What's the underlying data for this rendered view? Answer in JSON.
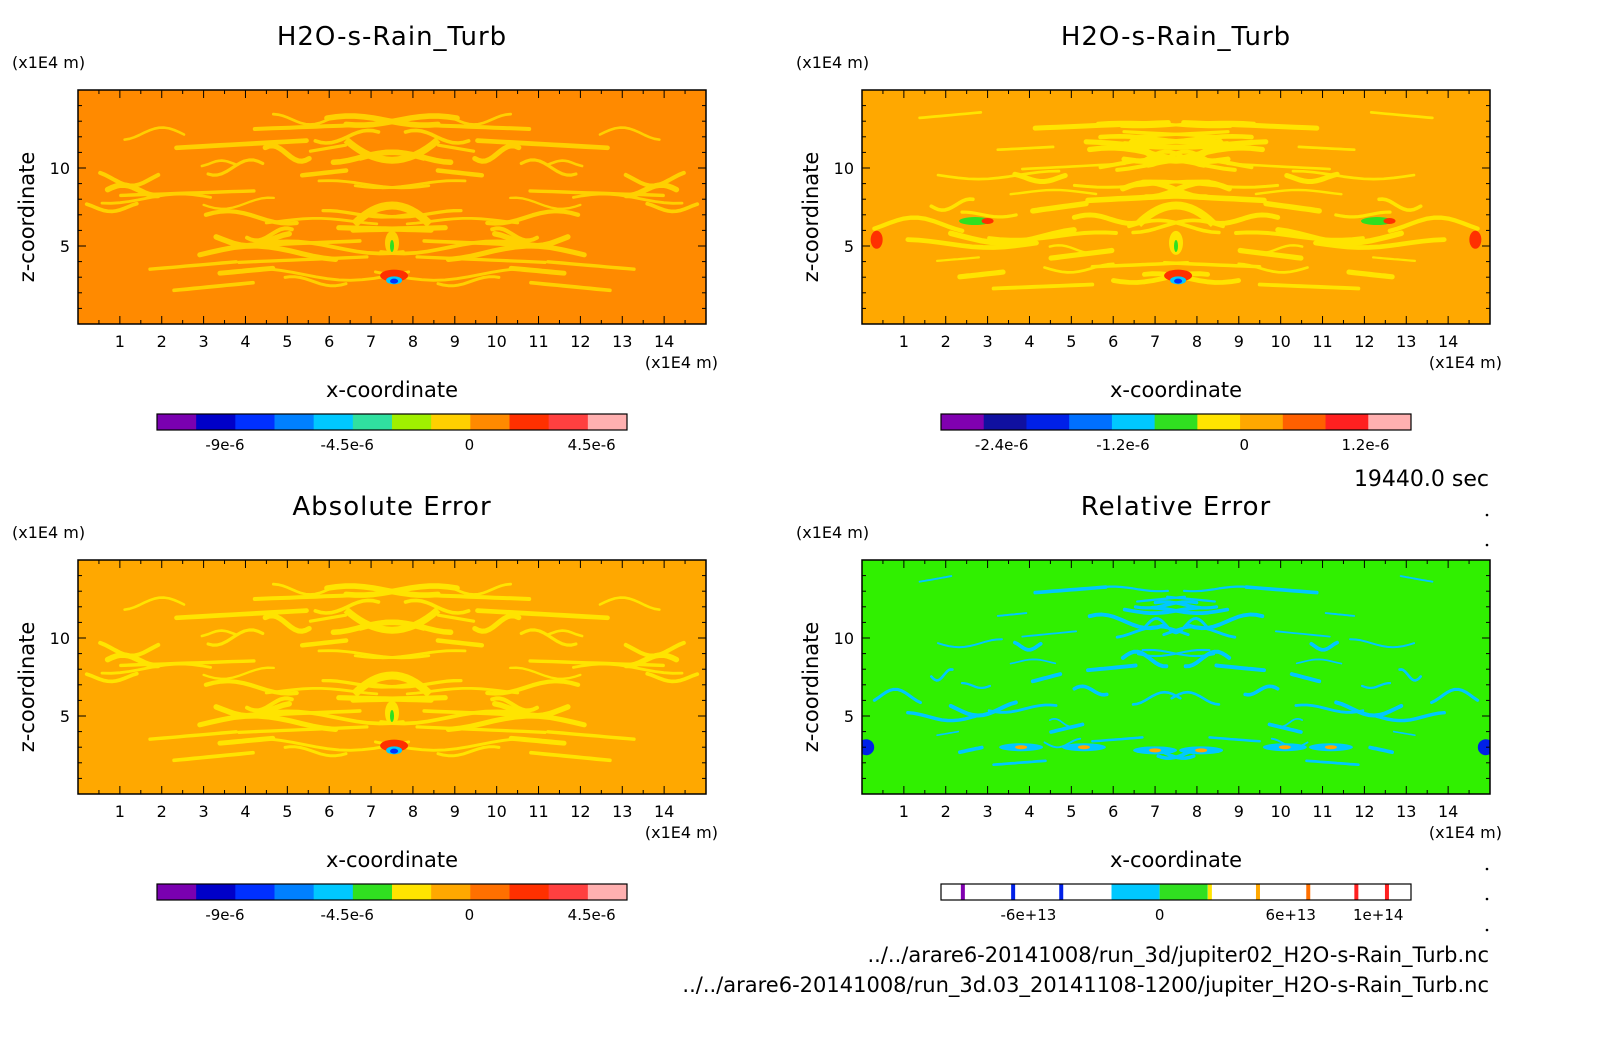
{
  "time_label": "19440.0 sec",
  "file_paths": [
    "../../arare6-20141008/run_3d/jupiter02_H2O-s-Rain_Turb.nc",
    "../../arare6-20141008/run_3d.03_20141108-1200/jupiter_H2O-s-Rain_Turb.nc"
  ],
  "chart_data": [
    {
      "type": "heatmap",
      "title": "H2O-s-Rain_Turb",
      "xlabel": "x-coordinate",
      "ylabel": "z-coordinate",
      "x_unit": "(x1E4 m)",
      "y_unit": "(x1E4 m)",
      "xlim": [
        0,
        15
      ],
      "ylim": [
        0,
        15
      ],
      "x_ticks": [
        "1",
        "2",
        "3",
        "4",
        "5",
        "6",
        "7",
        "8",
        "9",
        "10",
        "11",
        "12",
        "13",
        "14"
      ],
      "y_ticks": [
        "5",
        "10"
      ],
      "background_color": "#FF8A00",
      "pattern_color": "#FFD000",
      "colorbar": {
        "colors": [
          "#7A00B0",
          "#0000C8",
          "#0030FF",
          "#0080FF",
          "#00C8FF",
          "#30E0A0",
          "#A0F000",
          "#FFD000",
          "#FF8A00",
          "#FF3000",
          "#FF4040",
          "#FFB0B0"
        ],
        "labels": [
          "-9e-6",
          "-4.5e-6",
          "0",
          "4.5e-6"
        ],
        "label_values": [
          -9e-06,
          -4.5e-06,
          0,
          4.5e-06
        ],
        "range": [
          -1.15e-05,
          5.8e-06
        ]
      }
    },
    {
      "type": "heatmap",
      "title": "H2O-s-Rain_Turb",
      "xlabel": "x-coordinate",
      "ylabel": "z-coordinate",
      "x_unit": "(x1E4 m)",
      "y_unit": "(x1E4 m)",
      "xlim": [
        0,
        15
      ],
      "ylim": [
        0,
        15
      ],
      "x_ticks": [
        "1",
        "2",
        "3",
        "4",
        "5",
        "6",
        "7",
        "8",
        "9",
        "10",
        "11",
        "12",
        "13",
        "14"
      ],
      "y_ticks": [
        "5",
        "10"
      ],
      "background_color": "#FFA800",
      "pattern_color": "#FFE400",
      "colorbar": {
        "colors": [
          "#8000B0",
          "#1010A0",
          "#0020E8",
          "#0070FF",
          "#00C8FF",
          "#30E020",
          "#FFE400",
          "#FFA800",
          "#FF6000",
          "#FF2020",
          "#FFB0B0"
        ],
        "labels": [
          "-2.4e-6",
          "-1.2e-6",
          "0",
          "1.2e-6"
        ],
        "label_values": [
          -2.4e-06,
          -1.2e-06,
          0,
          1.2e-06
        ],
        "range": [
          -3e-06,
          1.65e-06
        ]
      }
    },
    {
      "type": "heatmap",
      "title": "Absolute Error",
      "xlabel": "x-coordinate",
      "ylabel": "z-coordinate",
      "x_unit": "(x1E4 m)",
      "y_unit": "(x1E4 m)",
      "xlim": [
        0,
        15
      ],
      "ylim": [
        0,
        15
      ],
      "x_ticks": [
        "1",
        "2",
        "3",
        "4",
        "5",
        "6",
        "7",
        "8",
        "9",
        "10",
        "11",
        "12",
        "13",
        "14"
      ],
      "y_ticks": [
        "5",
        "10"
      ],
      "background_color": "#FFA800",
      "pattern_color": "#FFE400",
      "colorbar": {
        "colors": [
          "#7A00B0",
          "#0000C8",
          "#0030FF",
          "#0080FF",
          "#00C8FF",
          "#30E020",
          "#FFE400",
          "#FFA800",
          "#FF7000",
          "#FF3000",
          "#FF4040",
          "#FFB0B0"
        ],
        "labels": [
          "-9e-6",
          "-4.5e-6",
          "0",
          "4.5e-6"
        ],
        "label_values": [
          -9e-06,
          -4.5e-06,
          0,
          4.5e-06
        ],
        "range": [
          -1.15e-05,
          5.8e-06
        ]
      }
    },
    {
      "type": "heatmap",
      "title": "Relative Error",
      "xlabel": "x-coordinate",
      "ylabel": "z-coordinate",
      "x_unit": "(x1E4 m)",
      "y_unit": "(x1E4 m)",
      "xlim": [
        0,
        15
      ],
      "ylim": [
        0,
        15
      ],
      "x_ticks": [
        "1",
        "2",
        "3",
        "4",
        "5",
        "6",
        "7",
        "8",
        "9",
        "10",
        "11",
        "12",
        "13",
        "14"
      ],
      "y_ticks": [
        "5",
        "10"
      ],
      "background_color": "#30F000",
      "pattern_color": "#00C8FF",
      "colorbar": {
        "colors": [
          "#8000B0",
          "#0020E8",
          "#0020E8",
          "#00C8FF",
          "#30E020",
          "#FFE400",
          "#FFA800",
          "#FF7000",
          "#FF2020"
        ],
        "labels": [
          "-6e+13",
          "0",
          "6e+13",
          "1e+14"
        ],
        "label_values": [
          -60000000000000.0,
          0,
          60000000000000.0,
          100000000000000.0
        ],
        "range": [
          -100000000000000.0,
          115000000000000.0
        ]
      }
    }
  ]
}
